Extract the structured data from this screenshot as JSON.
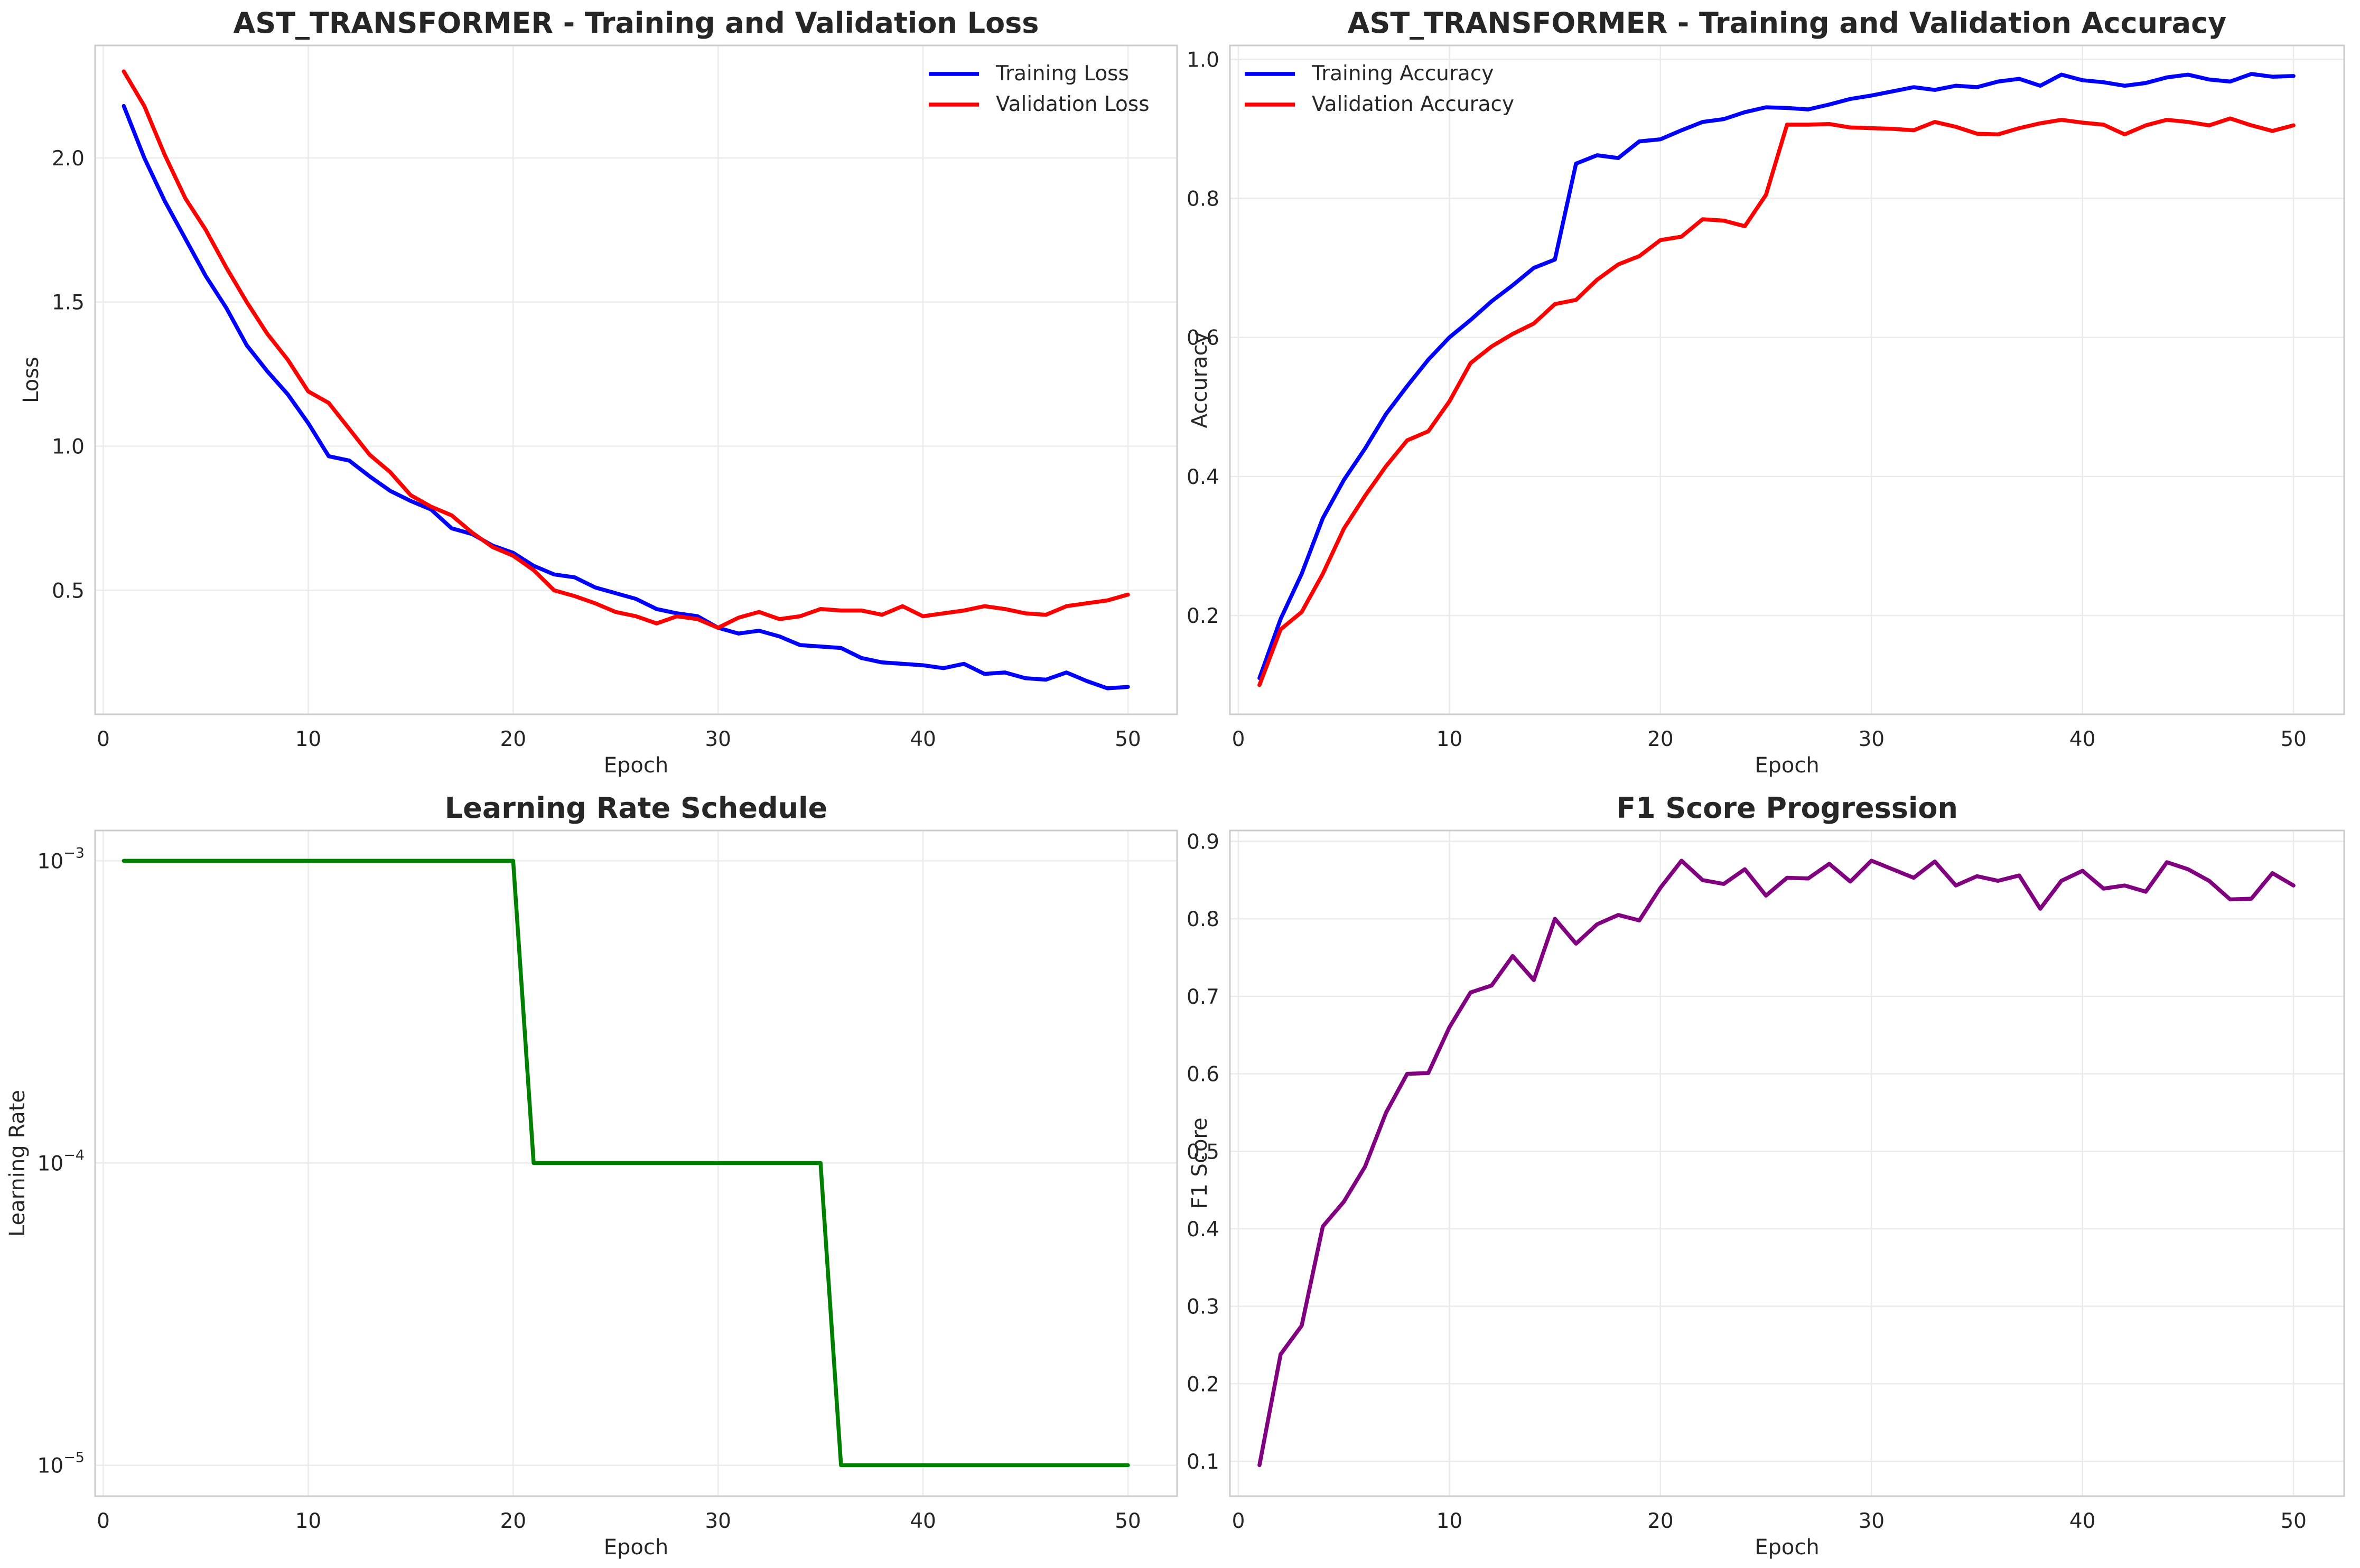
{
  "colors": {
    "blue": "#0000ff",
    "red": "#ff0000",
    "green": "#008000",
    "purple": "#800080"
  },
  "chart_data": [
    {
      "id": "loss",
      "type": "line",
      "title": "AST_TRANSFORMER - Training and Validation Loss",
      "xlabel": "Epoch",
      "ylabel": "Loss",
      "xlim": [
        -0.4,
        52.4
      ],
      "ylim": [
        0.07,
        2.39
      ],
      "xticks": [
        0,
        10,
        20,
        30,
        40,
        50
      ],
      "yticks": [
        0.5,
        1.0,
        1.5,
        2.0
      ],
      "ytick_labels": [
        "0.5",
        "1.0",
        "1.5",
        "2.0"
      ],
      "grid": true,
      "legend": "top-right",
      "x": [
        1,
        2,
        3,
        4,
        5,
        6,
        7,
        8,
        9,
        10,
        11,
        12,
        13,
        14,
        15,
        16,
        17,
        18,
        19,
        20,
        21,
        22,
        23,
        24,
        25,
        26,
        27,
        28,
        29,
        30,
        31,
        32,
        33,
        34,
        35,
        36,
        37,
        38,
        39,
        40,
        41,
        42,
        43,
        44,
        45,
        46,
        47,
        48,
        49,
        50
      ],
      "series": [
        {
          "name": "Training Loss",
          "color": "blue",
          "values": [
            2.18,
            2.0,
            1.85,
            1.72,
            1.59,
            1.48,
            1.35,
            1.26,
            1.18,
            1.08,
            0.965,
            0.95,
            0.895,
            0.845,
            0.81,
            0.78,
            0.715,
            0.695,
            0.655,
            0.63,
            0.585,
            0.555,
            0.545,
            0.51,
            0.49,
            0.47,
            0.435,
            0.42,
            0.41,
            0.37,
            0.35,
            0.36,
            0.34,
            0.31,
            0.305,
            0.3,
            0.265,
            0.25,
            0.245,
            0.24,
            0.23,
            0.245,
            0.21,
            0.215,
            0.195,
            0.19,
            0.215,
            0.185,
            0.16,
            0.165
          ]
        },
        {
          "name": "Validation Loss",
          "color": "red",
          "values": [
            2.3,
            2.18,
            2.01,
            1.86,
            1.75,
            1.62,
            1.5,
            1.39,
            1.3,
            1.19,
            1.15,
            1.06,
            0.97,
            0.91,
            0.83,
            0.79,
            0.76,
            0.7,
            0.65,
            0.62,
            0.57,
            0.5,
            0.48,
            0.455,
            0.425,
            0.41,
            0.385,
            0.41,
            0.4,
            0.37,
            0.405,
            0.425,
            0.4,
            0.41,
            0.435,
            0.43,
            0.43,
            0.415,
            0.445,
            0.41,
            0.42,
            0.43,
            0.445,
            0.435,
            0.42,
            0.415,
            0.445,
            0.455,
            0.465,
            0.485
          ]
        }
      ]
    },
    {
      "id": "accuracy",
      "type": "line",
      "title": "AST_TRANSFORMER - Training and Validation Accuracy",
      "xlabel": "Epoch",
      "ylabel": "Accuracy",
      "xlim": [
        -0.4,
        52.4
      ],
      "ylim": [
        0.058,
        1.02
      ],
      "xticks": [
        0,
        10,
        20,
        30,
        40,
        50
      ],
      "yticks": [
        0.2,
        0.4,
        0.6,
        0.8,
        1.0
      ],
      "ytick_labels": [
        "0.2",
        "0.4",
        "0.6",
        "0.8",
        "1.0"
      ],
      "grid": true,
      "legend": "top-left",
      "x": [
        1,
        2,
        3,
        4,
        5,
        6,
        7,
        8,
        9,
        10,
        11,
        12,
        13,
        14,
        15,
        16,
        17,
        18,
        19,
        20,
        21,
        22,
        23,
        24,
        25,
        26,
        27,
        28,
        29,
        30,
        31,
        32,
        33,
        34,
        35,
        36,
        37,
        38,
        39,
        40,
        41,
        42,
        43,
        44,
        45,
        46,
        47,
        48,
        49,
        50
      ],
      "series": [
        {
          "name": "Training Accuracy",
          "color": "blue",
          "values": [
            0.11,
            0.195,
            0.26,
            0.34,
            0.395,
            0.44,
            0.49,
            0.53,
            0.568,
            0.6,
            0.625,
            0.652,
            0.675,
            0.7,
            0.712,
            0.85,
            0.862,
            0.858,
            0.882,
            0.885,
            0.898,
            0.91,
            0.914,
            0.924,
            0.931,
            0.93,
            0.928,
            0.935,
            0.943,
            0.948,
            0.954,
            0.96,
            0.956,
            0.962,
            0.96,
            0.968,
            0.972,
            0.962,
            0.978,
            0.97,
            0.967,
            0.962,
            0.966,
            0.974,
            0.978,
            0.971,
            0.968,
            0.979,
            0.975,
            0.976
          ]
        },
        {
          "name": "Validation Accuracy",
          "color": "red",
          "values": [
            0.1,
            0.18,
            0.205,
            0.26,
            0.325,
            0.372,
            0.415,
            0.452,
            0.465,
            0.508,
            0.563,
            0.587,
            0.605,
            0.62,
            0.648,
            0.654,
            0.683,
            0.705,
            0.717,
            0.74,
            0.745,
            0.77,
            0.768,
            0.76,
            0.805,
            0.906,
            0.906,
            0.907,
            0.902,
            0.901,
            0.9,
            0.898,
            0.91,
            0.903,
            0.893,
            0.892,
            0.901,
            0.908,
            0.913,
            0.909,
            0.906,
            0.892,
            0.905,
            0.913,
            0.91,
            0.905,
            0.915,
            0.905,
            0.897,
            0.905
          ]
        }
      ]
    },
    {
      "id": "lr",
      "type": "line",
      "title": "Learning Rate Schedule",
      "xlabel": "Epoch",
      "ylabel": "Learning Rate",
      "yscale": "log",
      "xlim": [
        -0.4,
        52.4
      ],
      "ylim": [
        7.9e-06,
        0.00126
      ],
      "xticks": [
        0,
        10,
        20,
        30,
        40,
        50
      ],
      "yticks": [
        0.001,
        0.0001,
        1e-05
      ],
      "ytick_exponents": [
        "−3",
        "−4",
        "−5"
      ],
      "grid": true,
      "x": [
        1,
        2,
        3,
        4,
        5,
        6,
        7,
        8,
        9,
        10,
        11,
        12,
        13,
        14,
        15,
        16,
        17,
        18,
        19,
        20,
        21,
        22,
        23,
        24,
        25,
        26,
        27,
        28,
        29,
        30,
        31,
        32,
        33,
        34,
        35,
        36,
        37,
        38,
        39,
        40,
        41,
        42,
        43,
        44,
        45,
        46,
        47,
        48,
        49,
        50
      ],
      "series": [
        {
          "color": "green",
          "values": [
            0.001,
            0.001,
            0.001,
            0.001,
            0.001,
            0.001,
            0.001,
            0.001,
            0.001,
            0.001,
            0.001,
            0.001,
            0.001,
            0.001,
            0.001,
            0.001,
            0.001,
            0.001,
            0.001,
            0.001,
            0.0001,
            0.0001,
            0.0001,
            0.0001,
            0.0001,
            0.0001,
            0.0001,
            0.0001,
            0.0001,
            0.0001,
            0.0001,
            0.0001,
            0.0001,
            0.0001,
            0.0001,
            1e-05,
            1e-05,
            1e-05,
            1e-05,
            1e-05,
            1e-05,
            1e-05,
            1e-05,
            1e-05,
            1e-05,
            1e-05,
            1e-05,
            1e-05,
            1e-05,
            1e-05
          ]
        }
      ]
    },
    {
      "id": "f1",
      "type": "line",
      "title": "F1 Score Progression",
      "xlabel": "Epoch",
      "ylabel": "F1 Score",
      "xlim": [
        -0.4,
        52.4
      ],
      "ylim": [
        0.055,
        0.914
      ],
      "xticks": [
        0,
        10,
        20,
        30,
        40,
        50
      ],
      "yticks": [
        0.1,
        0.2,
        0.3,
        0.4,
        0.5,
        0.6,
        0.7,
        0.8,
        0.9
      ],
      "ytick_labels": [
        "0.1",
        "0.2",
        "0.3",
        "0.4",
        "0.5",
        "0.6",
        "0.7",
        "0.8",
        "0.9"
      ],
      "grid": true,
      "x": [
        1,
        2,
        3,
        4,
        5,
        6,
        7,
        8,
        9,
        10,
        11,
        12,
        13,
        14,
        15,
        16,
        17,
        18,
        19,
        20,
        21,
        22,
        23,
        24,
        25,
        26,
        27,
        28,
        29,
        30,
        31,
        32,
        33,
        34,
        35,
        36,
        37,
        38,
        39,
        40,
        41,
        42,
        43,
        44,
        45,
        46,
        47,
        48,
        49,
        50
      ],
      "series": [
        {
          "color": "purple",
          "values": [
            0.095,
            0.238,
            0.275,
            0.403,
            0.435,
            0.48,
            0.55,
            0.6,
            0.601,
            0.66,
            0.705,
            0.714,
            0.752,
            0.721,
            0.8,
            0.768,
            0.793,
            0.805,
            0.798,
            0.84,
            0.875,
            0.85,
            0.845,
            0.864,
            0.83,
            0.853,
            0.852,
            0.871,
            0.848,
            0.875,
            0.864,
            0.853,
            0.874,
            0.843,
            0.855,
            0.849,
            0.856,
            0.813,
            0.849,
            0.862,
            0.839,
            0.843,
            0.835,
            0.873,
            0.864,
            0.849,
            0.825,
            0.826,
            0.859,
            0.843
          ]
        }
      ]
    }
  ]
}
